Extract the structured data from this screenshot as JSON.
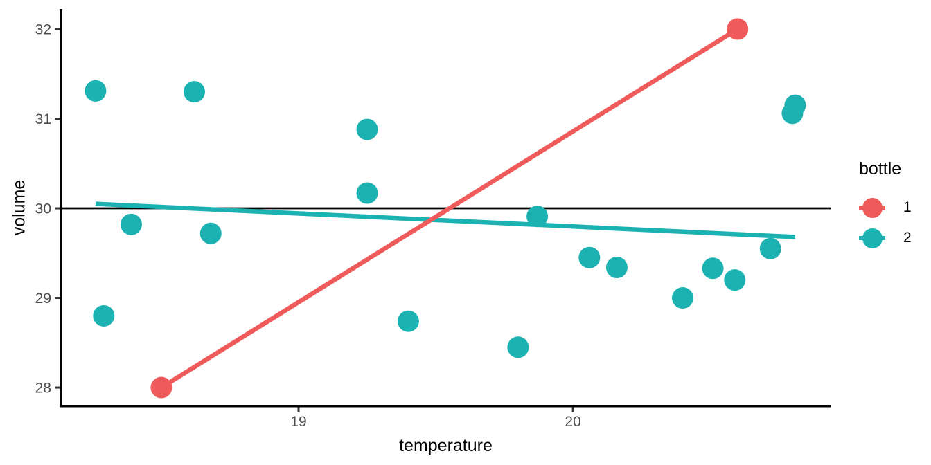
{
  "chart_data": {
    "type": "scatter",
    "title": "",
    "xlabel": "temperature",
    "ylabel": "volume",
    "xlim": [
      18.134,
      20.939
    ],
    "ylim": [
      27.792,
      32.224
    ],
    "x_ticks": [
      19,
      20
    ],
    "y_ticks": [
      28,
      29,
      30,
      31,
      32
    ],
    "grid": false,
    "background": "#ffffff",
    "tick_label_color": "#4d4d4d",
    "axis_color": "#000000",
    "reference_line": {
      "y": 30,
      "color": "#000000"
    },
    "legend": {
      "title": "bottle",
      "position": "right",
      "items": [
        {
          "label": "1",
          "color": "#EF5B5B"
        },
        {
          "label": "2",
          "color": "#1BB2B1"
        }
      ]
    },
    "series": [
      {
        "name": "1",
        "color": "#EF5B5B",
        "points": [
          [
            18.5,
            28.0
          ],
          [
            20.6,
            32.0
          ]
        ],
        "trend": {
          "x": [
            18.5,
            20.6
          ],
          "y": [
            28.0,
            32.0
          ]
        }
      },
      {
        "name": "2",
        "color": "#1BB2B1",
        "points": [
          [
            18.26,
            31.31
          ],
          [
            18.29,
            28.8
          ],
          [
            18.39,
            29.82
          ],
          [
            18.62,
            31.3
          ],
          [
            18.68,
            29.72
          ],
          [
            19.25,
            30.88
          ],
          [
            19.25,
            30.17
          ],
          [
            19.4,
            28.74
          ],
          [
            19.8,
            28.45
          ],
          [
            19.87,
            29.91
          ],
          [
            20.06,
            29.45
          ],
          [
            20.16,
            29.34
          ],
          [
            20.4,
            29.0
          ],
          [
            20.51,
            29.33
          ],
          [
            20.59,
            29.2
          ],
          [
            20.72,
            29.55
          ],
          [
            20.8,
            31.06
          ],
          [
            20.81,
            31.15
          ]
        ],
        "trend": {
          "x": [
            18.26,
            20.81
          ],
          "y": [
            30.05,
            29.68
          ]
        }
      }
    ]
  }
}
